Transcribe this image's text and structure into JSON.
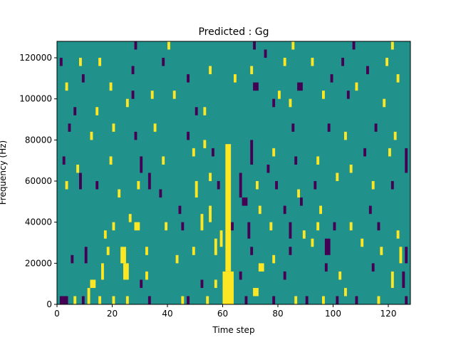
{
  "chart_data": {
    "type": "heatmap",
    "title": "Predicted : Gg",
    "xlabel": "Time step",
    "ylabel": "Frequency (Hz)",
    "xlim": [
      0,
      128
    ],
    "ylim": [
      0,
      128000
    ],
    "xticks": [
      0,
      20,
      40,
      60,
      80,
      100,
      120
    ],
    "xtick_labels": [
      "0",
      "20",
      "40",
      "60",
      "80",
      "100",
      "120"
    ],
    "yticks": [
      0,
      20000,
      40000,
      60000,
      80000,
      100000,
      120000
    ],
    "ytick_labels": [
      "0",
      "20000",
      "40000",
      "60000",
      "80000",
      "100000",
      "120000"
    ],
    "colormap": "viridis",
    "colors": {
      "low": "#440154",
      "mid": "#21918c",
      "high": "#fde725"
    },
    "background_value": "mid",
    "cells_note": "Each cell = [time_step_start, time_step_end, freq_start_Hz, freq_end_Hz, level]",
    "cells": [
      [
        1,
        4,
        0,
        4000,
        "low"
      ],
      [
        6,
        7,
        0,
        4000,
        "high"
      ],
      [
        9,
        10,
        0,
        4000,
        "low"
      ],
      [
        11,
        12,
        0,
        8000,
        "high"
      ],
      [
        15,
        16,
        0,
        4000,
        "high"
      ],
      [
        20,
        21,
        0,
        4000,
        "high"
      ],
      [
        25,
        26,
        0,
        4000,
        "high"
      ],
      [
        33,
        34,
        0,
        4000,
        "low"
      ],
      [
        45,
        46,
        0,
        4000,
        "high"
      ],
      [
        47,
        48,
        0,
        4000,
        "low"
      ],
      [
        54,
        55,
        0,
        4000,
        "high"
      ],
      [
        60,
        64,
        0,
        16000,
        "high"
      ],
      [
        61,
        63,
        16000,
        78000,
        "high"
      ],
      [
        68,
        69,
        0,
        4000,
        "low"
      ],
      [
        71,
        73,
        4000,
        8000,
        "high"
      ],
      [
        78,
        79,
        0,
        4000,
        "low"
      ],
      [
        86,
        87,
        0,
        4000,
        "high"
      ],
      [
        90,
        91,
        0,
        4000,
        "low"
      ],
      [
        96,
        97,
        0,
        4000,
        "high"
      ],
      [
        101,
        102,
        0,
        4000,
        "low"
      ],
      [
        104,
        105,
        4000,
        8000,
        "high"
      ],
      [
        108,
        109,
        0,
        4000,
        "low"
      ],
      [
        116,
        117,
        0,
        4000,
        "high"
      ],
      [
        126,
        127,
        0,
        4000,
        "low"
      ],
      [
        12,
        14,
        8000,
        12000,
        "high"
      ],
      [
        16,
        17,
        12000,
        20000,
        "high"
      ],
      [
        24,
        26,
        12000,
        20000,
        "high"
      ],
      [
        30,
        31,
        8000,
        12000,
        "low"
      ],
      [
        32,
        33,
        12000,
        16000,
        "high"
      ],
      [
        52,
        53,
        8000,
        12000,
        "low"
      ],
      [
        57,
        58,
        8000,
        12000,
        "high"
      ],
      [
        66,
        67,
        12000,
        16000,
        "low"
      ],
      [
        73,
        75,
        16000,
        20000,
        "high"
      ],
      [
        82,
        83,
        12000,
        16000,
        "low"
      ],
      [
        97,
        98,
        16000,
        20000,
        "low"
      ],
      [
        102,
        103,
        12000,
        16000,
        "high"
      ],
      [
        114,
        115,
        16000,
        20000,
        "low"
      ],
      [
        121,
        122,
        8000,
        16000,
        "high"
      ],
      [
        125,
        126,
        8000,
        16000,
        "low"
      ],
      [
        5,
        6,
        20000,
        24000,
        "low"
      ],
      [
        10,
        11,
        20000,
        28000,
        "low"
      ],
      [
        18,
        19,
        24000,
        28000,
        "high"
      ],
      [
        23,
        25,
        20000,
        28000,
        "high"
      ],
      [
        32,
        33,
        24000,
        28000,
        "high"
      ],
      [
        43,
        44,
        20000,
        24000,
        "high"
      ],
      [
        49,
        50,
        24000,
        28000,
        "high"
      ],
      [
        57,
        58,
        24000,
        32000,
        "high"
      ],
      [
        59,
        60,
        28000,
        36000,
        "high"
      ],
      [
        70,
        71,
        24000,
        28000,
        "low"
      ],
      [
        78,
        79,
        20000,
        24000,
        "high"
      ],
      [
        84,
        85,
        24000,
        28000,
        "low"
      ],
      [
        92,
        93,
        28000,
        32000,
        "high"
      ],
      [
        97,
        99,
        24000,
        32000,
        "low"
      ],
      [
        110,
        111,
        28000,
        32000,
        "high"
      ],
      [
        117,
        118,
        24000,
        28000,
        "high"
      ],
      [
        124,
        125,
        20000,
        28000,
        "high"
      ],
      [
        126,
        127,
        20000,
        28000,
        "low"
      ],
      [
        17,
        18,
        32000,
        36000,
        "high"
      ],
      [
        20,
        21,
        36000,
        40000,
        "high"
      ],
      [
        28,
        30,
        36000,
        40000,
        "high"
      ],
      [
        39,
        40,
        36000,
        40000,
        "high"
      ],
      [
        45,
        46,
        36000,
        40000,
        "low"
      ],
      [
        52,
        53,
        36000,
        44000,
        "high"
      ],
      [
        63,
        64,
        36000,
        40000,
        "low"
      ],
      [
        69,
        70,
        32000,
        40000,
        "low"
      ],
      [
        77,
        78,
        36000,
        40000,
        "high"
      ],
      [
        84,
        85,
        32000,
        40000,
        "low"
      ],
      [
        89,
        90,
        32000,
        36000,
        "high"
      ],
      [
        94,
        95,
        36000,
        40000,
        "high"
      ],
      [
        100,
        101,
        36000,
        40000,
        "low"
      ],
      [
        106,
        107,
        36000,
        40000,
        "high"
      ],
      [
        116,
        117,
        36000,
        40000,
        "low"
      ],
      [
        123,
        124,
        32000,
        36000,
        "high"
      ],
      [
        26,
        27,
        40000,
        44000,
        "high"
      ],
      [
        44,
        45,
        44000,
        48000,
        "low"
      ],
      [
        55,
        56,
        40000,
        48000,
        "high"
      ],
      [
        67,
        69,
        48000,
        52000,
        "low"
      ],
      [
        73,
        74,
        44000,
        48000,
        "high"
      ],
      [
        82,
        83,
        44000,
        48000,
        "low"
      ],
      [
        88,
        89,
        48000,
        52000,
        "low"
      ],
      [
        95,
        96,
        44000,
        48000,
        "high"
      ],
      [
        113,
        114,
        44000,
        48000,
        "low"
      ],
      [
        3,
        4,
        56000,
        60000,
        "high"
      ],
      [
        8,
        9,
        56000,
        64000,
        "low"
      ],
      [
        14,
        15,
        56000,
        60000,
        "low"
      ],
      [
        22,
        23,
        52000,
        56000,
        "high"
      ],
      [
        29,
        30,
        56000,
        60000,
        "high"
      ],
      [
        33,
        34,
        56000,
        64000,
        "low"
      ],
      [
        37,
        38,
        52000,
        56000,
        "low"
      ],
      [
        50,
        51,
        52000,
        60000,
        "high"
      ],
      [
        55,
        56,
        60000,
        64000,
        "high"
      ],
      [
        58,
        59,
        56000,
        60000,
        "low"
      ],
      [
        66,
        67,
        52000,
        64000,
        "low"
      ],
      [
        72,
        73,
        56000,
        60000,
        "high"
      ],
      [
        79,
        80,
        56000,
        60000,
        "low"
      ],
      [
        87,
        88,
        52000,
        56000,
        "high"
      ],
      [
        93,
        94,
        56000,
        60000,
        "low"
      ],
      [
        101,
        102,
        60000,
        64000,
        "high"
      ],
      [
        114,
        115,
        56000,
        60000,
        "high"
      ],
      [
        121,
        122,
        56000,
        60000,
        "low"
      ],
      [
        2,
        3,
        68000,
        72000,
        "low"
      ],
      [
        7,
        8,
        64000,
        68000,
        "high"
      ],
      [
        19,
        20,
        68000,
        72000,
        "high"
      ],
      [
        30,
        31,
        64000,
        72000,
        "low"
      ],
      [
        38,
        39,
        68000,
        72000,
        "high"
      ],
      [
        49,
        50,
        72000,
        76000,
        "high"
      ],
      [
        56,
        57,
        72000,
        76000,
        "low"
      ],
      [
        70,
        71,
        68000,
        80000,
        "low"
      ],
      [
        76,
        77,
        64000,
        68000,
        "low"
      ],
      [
        86,
        87,
        68000,
        72000,
        "low"
      ],
      [
        94,
        95,
        68000,
        72000,
        "high"
      ],
      [
        106,
        107,
        64000,
        68000,
        "high"
      ],
      [
        111,
        112,
        72000,
        76000,
        "low"
      ],
      [
        120,
        121,
        72000,
        76000,
        "high"
      ],
      [
        126,
        127,
        64000,
        76000,
        "low"
      ],
      [
        4,
        5,
        84000,
        88000,
        "low"
      ],
      [
        12,
        13,
        80000,
        84000,
        "high"
      ],
      [
        20,
        21,
        84000,
        88000,
        "high"
      ],
      [
        28,
        29,
        80000,
        84000,
        "low"
      ],
      [
        35,
        36,
        84000,
        88000,
        "high"
      ],
      [
        47,
        48,
        80000,
        84000,
        "low"
      ],
      [
        53,
        54,
        76000,
        80000,
        "high"
      ],
      [
        78,
        79,
        72000,
        76000,
        "high"
      ],
      [
        85,
        86,
        84000,
        88000,
        "low"
      ],
      [
        98,
        99,
        84000,
        88000,
        "low"
      ],
      [
        104,
        105,
        80000,
        84000,
        "high"
      ],
      [
        115,
        116,
        84000,
        88000,
        "low"
      ],
      [
        122,
        123,
        80000,
        84000,
        "high"
      ],
      [
        6,
        7,
        92000,
        96000,
        "low"
      ],
      [
        14,
        15,
        92000,
        96000,
        "high"
      ],
      [
        25,
        26,
        96000,
        100000,
        "high"
      ],
      [
        34,
        35,
        100000,
        104000,
        "high"
      ],
      [
        50,
        51,
        92000,
        96000,
        "low"
      ],
      [
        53,
        54,
        92000,
        96000,
        "high"
      ],
      [
        78,
        79,
        96000,
        100000,
        "low"
      ],
      [
        84,
        85,
        96000,
        100000,
        "high"
      ],
      [
        96,
        97,
        100000,
        104000,
        "high"
      ],
      [
        105,
        106,
        100000,
        104000,
        "low"
      ],
      [
        118,
        119,
        96000,
        100000,
        "high"
      ],
      [
        3,
        4,
        104000,
        108000,
        "high"
      ],
      [
        9,
        10,
        108000,
        112000,
        "low"
      ],
      [
        19,
        20,
        104000,
        108000,
        "high"
      ],
      [
        27,
        28,
        100000,
        104000,
        "low"
      ],
      [
        42,
        43,
        100000,
        104000,
        "high"
      ],
      [
        47,
        48,
        108000,
        112000,
        "low"
      ],
      [
        64,
        65,
        108000,
        112000,
        "high"
      ],
      [
        71,
        73,
        104000,
        108000,
        "low"
      ],
      [
        80,
        81,
        100000,
        104000,
        "high"
      ],
      [
        87,
        89,
        104000,
        108000,
        "low"
      ],
      [
        99,
        100,
        108000,
        112000,
        "low"
      ],
      [
        108,
        109,
        104000,
        108000,
        "high"
      ],
      [
        123,
        124,
        108000,
        112000,
        "high"
      ],
      [
        1,
        2,
        116000,
        120000,
        "low"
      ],
      [
        8,
        9,
        116000,
        120000,
        "high"
      ],
      [
        15,
        16,
        116000,
        120000,
        "high"
      ],
      [
        27,
        28,
        112000,
        116000,
        "low"
      ],
      [
        38,
        39,
        116000,
        120000,
        "low"
      ],
      [
        55,
        56,
        112000,
        116000,
        "high"
      ],
      [
        70,
        71,
        112000,
        116000,
        "high"
      ],
      [
        75,
        76,
        120000,
        124000,
        "low"
      ],
      [
        82,
        83,
        116000,
        120000,
        "high"
      ],
      [
        92,
        93,
        116000,
        120000,
        "high"
      ],
      [
        103,
        104,
        116000,
        120000,
        "low"
      ],
      [
        112,
        113,
        112000,
        116000,
        "low"
      ],
      [
        119,
        120,
        116000,
        120000,
        "high"
      ],
      [
        28,
        29,
        124000,
        128000,
        "low"
      ],
      [
        40,
        41,
        124000,
        128000,
        "high"
      ],
      [
        71,
        72,
        124000,
        128000,
        "low"
      ],
      [
        85,
        86,
        124000,
        128000,
        "high"
      ],
      [
        107,
        108,
        124000,
        128000,
        "low"
      ],
      [
        121,
        122,
        124000,
        128000,
        "high"
      ]
    ]
  }
}
